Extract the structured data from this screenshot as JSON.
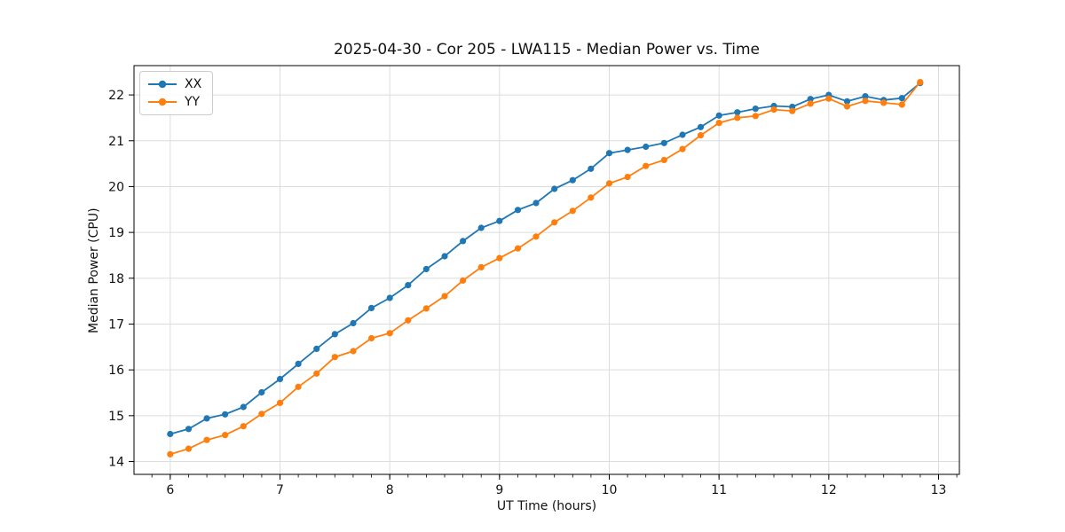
{
  "figure": {
    "background": "#ffffff",
    "text_color": "#111111"
  },
  "chart_data": {
    "type": "line",
    "title": "2025-04-30 - Cor 205 - LWA115 - Median Power vs. Time",
    "xlabel": "UT Time (hours)",
    "ylabel": "Median Power (CPU)",
    "xlim": [
      5.67,
      13.19
    ],
    "ylim": [
      13.72,
      22.64
    ],
    "xticks": [
      6,
      7,
      8,
      9,
      10,
      11,
      12,
      13
    ],
    "yticks": [
      14,
      15,
      16,
      17,
      18,
      19,
      20,
      21,
      22
    ],
    "x_minor_step": 0.16667,
    "grid": true,
    "grid_color": "#dddddd",
    "spine_color": "#000000",
    "legend_position": "upper left",
    "marker": "circle",
    "x": [
      6.0,
      6.167,
      6.333,
      6.5,
      6.667,
      6.833,
      7.0,
      7.167,
      7.333,
      7.5,
      7.667,
      7.833,
      8.0,
      8.167,
      8.333,
      8.5,
      8.667,
      8.833,
      9.0,
      9.167,
      9.333,
      9.5,
      9.667,
      9.833,
      10.0,
      10.167,
      10.333,
      10.5,
      10.667,
      10.833,
      11.0,
      11.167,
      11.333,
      11.5,
      11.667,
      11.833,
      12.0,
      12.167,
      12.333,
      12.5,
      12.667,
      12.833
    ],
    "series": [
      {
        "name": "XX",
        "color": "#1f77b4",
        "values": [
          14.6,
          14.71,
          14.94,
          15.03,
          15.19,
          15.51,
          15.8,
          16.13,
          16.46,
          16.78,
          17.02,
          17.35,
          17.57,
          17.85,
          18.2,
          18.48,
          18.81,
          19.1,
          19.25,
          19.49,
          19.64,
          19.95,
          20.14,
          20.39,
          20.73,
          20.8,
          20.87,
          20.95,
          21.13,
          21.3,
          21.55,
          21.62,
          21.7,
          21.76,
          21.74,
          21.91,
          22.0,
          21.86,
          21.97,
          21.89,
          21.93,
          22.26
        ]
      },
      {
        "name": "YY",
        "color": "#ff7f0e",
        "values": [
          14.16,
          14.28,
          14.47,
          14.58,
          14.77,
          15.04,
          15.28,
          15.63,
          15.92,
          16.28,
          16.41,
          16.69,
          16.8,
          17.08,
          17.34,
          17.61,
          17.95,
          18.24,
          18.44,
          18.65,
          18.91,
          19.22,
          19.47,
          19.76,
          20.07,
          20.21,
          20.45,
          20.58,
          20.82,
          21.12,
          21.39,
          21.5,
          21.54,
          21.68,
          21.65,
          21.81,
          21.92,
          21.75,
          21.87,
          21.83,
          21.79,
          22.28
        ]
      }
    ]
  }
}
